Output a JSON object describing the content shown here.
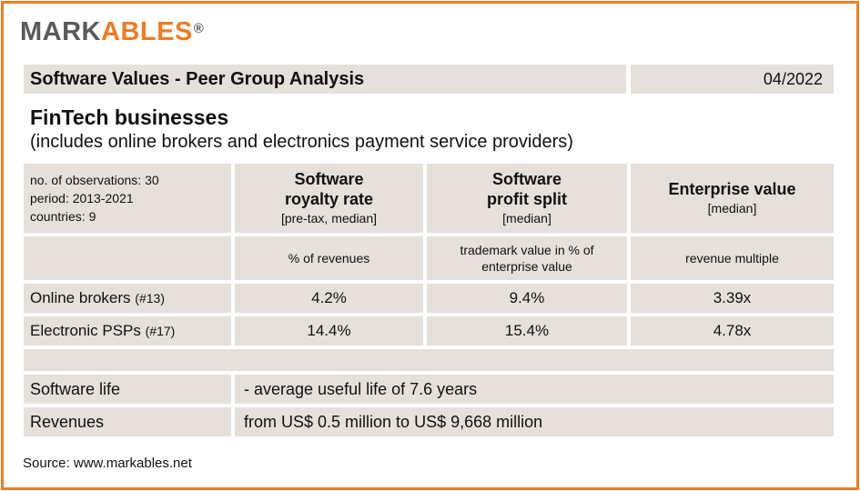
{
  "logo": {
    "part1": "MARK",
    "part2": "A",
    "part3": "BLES",
    "registered": "®"
  },
  "header": {
    "title": "Software Values - Peer Group Analysis",
    "date": "04/2022"
  },
  "section": {
    "title": "FinTech businesses",
    "subtitle": "(includes online brokers and electronics payment service providers)"
  },
  "info": {
    "observations": "no. of observations: 30",
    "period": "period: 2013-2021",
    "countries": "countries: 9"
  },
  "columns": [
    {
      "line1": "Software",
      "line2": "royalty rate",
      "note": "[pre-tax, median]",
      "unit": "% of revenues"
    },
    {
      "line1": "Software",
      "line2": "profit split",
      "note": "[median]",
      "unit": "trademark value in % of enterprise value"
    },
    {
      "line1": "Enterprise value",
      "line2": "",
      "note": "[median]",
      "unit": "revenue multiple"
    }
  ],
  "rows": [
    {
      "label": "Online brokers",
      "count": "(#13)",
      "values": [
        "4.2%",
        "9.4%",
        "3.39x"
      ]
    },
    {
      "label": "Electronic PSPs",
      "count": "(#17)",
      "values": [
        "14.4%",
        "15.4%",
        "4.78x"
      ]
    }
  ],
  "details": [
    {
      "label": "Software life",
      "value": "- average useful life of 7.6 years"
    },
    {
      "label": "Revenues",
      "value": "from US$ 0.5 million to US$ 9,668 million"
    }
  ],
  "source": "Source: www.markables.net",
  "colors": {
    "accent": "#ee7d28",
    "cell_bg": "#e6e0da",
    "logo_gray": "#5a5a5a"
  }
}
